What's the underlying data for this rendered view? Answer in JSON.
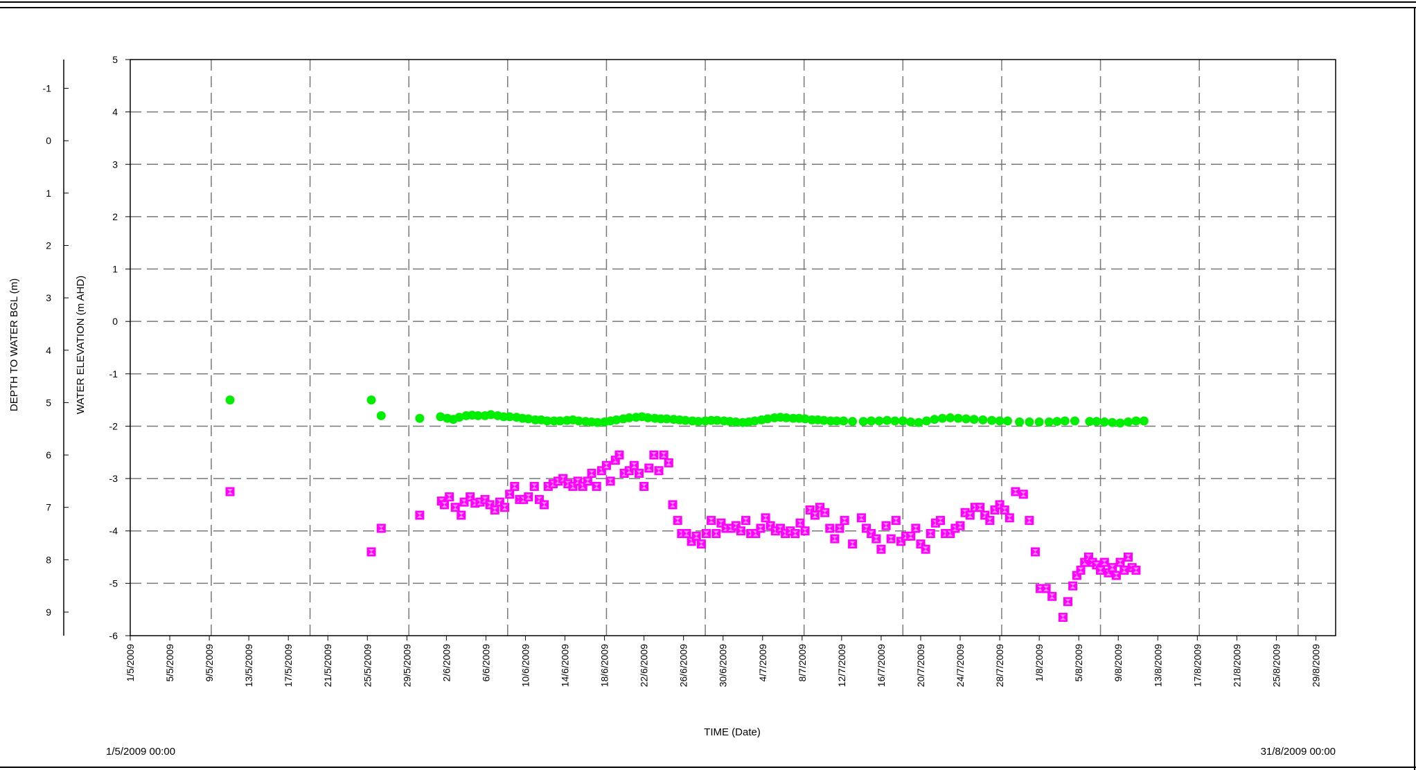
{
  "chart_data": {
    "type": "scatter",
    "xlabel": "TIME (Date)",
    "ylabel": "WATER ELEVATION (m AHD)",
    "y2label": "DEPTH TO WATER BGL (m)",
    "x_start_label": "1/5/2009 00:00",
    "x_end_label": "31/8/2009 00:00",
    "xlim": [
      "2009-05-01",
      "2009-08-31"
    ],
    "ylim": [
      -6,
      5
    ],
    "y2lim": [
      9.45,
      -1.55
    ],
    "y_ticks": [
      5,
      4,
      3,
      2,
      1,
      0,
      -1,
      -2,
      -3,
      -4,
      -5,
      -6
    ],
    "y2_ticks": [
      -1,
      0,
      1,
      2,
      3,
      4,
      5,
      6,
      7,
      8,
      9
    ],
    "x_ticks": [
      "1/5/2009",
      "5/5/2009",
      "9/5/2009",
      "13/5/2009",
      "17/5/2009",
      "21/5/2009",
      "25/5/2009",
      "29/5/2009",
      "2/6/2009",
      "6/6/2009",
      "10/6/2009",
      "14/6/2009",
      "18/6/2009",
      "22/6/2009",
      "26/6/2009",
      "30/6/2009",
      "4/7/2009",
      "8/7/2009",
      "12/7/2009",
      "16/7/2009",
      "20/7/2009",
      "24/7/2009",
      "28/7/2009",
      "1/8/2009",
      "5/8/2009",
      "9/8/2009",
      "13/8/2009",
      "17/8/2009",
      "21/8/2009",
      "25/8/2009",
      "29/8/2009"
    ],
    "grid": true,
    "series": [
      {
        "axis": "y",
        "unit": "m AHD",
        "color": "#00ee00",
        "marker": "circle",
        "x_days": [
          10.1,
          24.4,
          25.4,
          29.3,
          31.4,
          32.1,
          32.7,
          33.3,
          34.0,
          34.6,
          35.2,
          35.9,
          36.5,
          37.2,
          37.8,
          38.4,
          39.1,
          39.7,
          40.3,
          41.0,
          41.6,
          42.2,
          42.9,
          43.5,
          44.2,
          44.8,
          45.4,
          46.1,
          46.7,
          47.3,
          48.0,
          48.6,
          49.2,
          49.9,
          50.5,
          51.2,
          51.8,
          52.4,
          53.1,
          53.7,
          54.3,
          55.0,
          55.6,
          56.2,
          56.9,
          57.5,
          58.2,
          58.8,
          59.4,
          60.1,
          60.7,
          61.3,
          62.0,
          62.6,
          63.2,
          63.9,
          64.5,
          65.2,
          65.8,
          66.4,
          67.1,
          67.7,
          68.3,
          69.0,
          69.6,
          70.2,
          70.9,
          71.5,
          72.2,
          73.1,
          74.2,
          75.0,
          75.8,
          76.6,
          77.4,
          78.2,
          79.0,
          79.8,
          80.6,
          81.4,
          82.2,
          83.0,
          83.8,
          84.6,
          85.4,
          86.3,
          87.2,
          88.0,
          88.8,
          90.0,
          91.0,
          92.0,
          93.0,
          93.8,
          94.6,
          95.6,
          97.1,
          97.8,
          98.6,
          99.4,
          100.2,
          101.0,
          101.8,
          102.6
        ],
        "values": [
          -1.5,
          -1.5,
          -1.8,
          -1.85,
          -1.82,
          -1.85,
          -1.87,
          -1.83,
          -1.8,
          -1.79,
          -1.8,
          -1.8,
          -1.78,
          -1.8,
          -1.82,
          -1.82,
          -1.83,
          -1.85,
          -1.86,
          -1.88,
          -1.88,
          -1.9,
          -1.9,
          -1.9,
          -1.89,
          -1.88,
          -1.9,
          -1.91,
          -1.92,
          -1.93,
          -1.92,
          -1.9,
          -1.88,
          -1.86,
          -1.84,
          -1.83,
          -1.82,
          -1.84,
          -1.85,
          -1.86,
          -1.86,
          -1.87,
          -1.88,
          -1.89,
          -1.9,
          -1.91,
          -1.9,
          -1.89,
          -1.89,
          -1.9,
          -1.91,
          -1.92,
          -1.93,
          -1.92,
          -1.9,
          -1.88,
          -1.86,
          -1.84,
          -1.83,
          -1.84,
          -1.85,
          -1.85,
          -1.86,
          -1.88,
          -1.88,
          -1.89,
          -1.9,
          -1.9,
          -1.9,
          -1.91,
          -1.91,
          -1.9,
          -1.9,
          -1.89,
          -1.9,
          -1.9,
          -1.92,
          -1.93,
          -1.9,
          -1.87,
          -1.85,
          -1.84,
          -1.85,
          -1.86,
          -1.87,
          -1.88,
          -1.89,
          -1.9,
          -1.9,
          -1.92,
          -1.92,
          -1.92,
          -1.92,
          -1.91,
          -1.9,
          -1.9,
          -1.91,
          -1.91,
          -1.92,
          -1.93,
          -1.94,
          -1.92,
          -1.9,
          -1.9
        ]
      },
      {
        "axis": "y2",
        "unit": "m BGL",
        "color": "#ff00ff",
        "marker": "hourglass-square",
        "x_days": [
          10.1,
          24.4,
          25.4,
          29.3,
          31.5,
          31.8,
          32.3,
          32.9,
          33.5,
          33.8,
          34.4,
          34.9,
          35.4,
          35.9,
          36.4,
          36.9,
          37.4,
          37.9,
          38.4,
          38.9,
          39.4,
          39.8,
          40.3,
          40.9,
          41.4,
          41.9,
          42.3,
          42.8,
          43.3,
          43.8,
          44.3,
          44.8,
          45.3,
          45.8,
          46.3,
          46.7,
          47.2,
          47.7,
          48.2,
          48.6,
          49.1,
          49.5,
          50.0,
          50.5,
          51.0,
          51.5,
          52.0,
          52.5,
          53.0,
          53.5,
          54.0,
          54.5,
          54.9,
          55.4,
          55.8,
          56.3,
          56.8,
          57.3,
          57.8,
          58.3,
          58.8,
          59.3,
          59.8,
          60.3,
          60.8,
          61.3,
          61.8,
          62.3,
          62.8,
          63.3,
          63.8,
          64.3,
          64.8,
          65.3,
          65.8,
          66.3,
          66.8,
          67.3,
          67.8,
          68.3,
          68.8,
          69.3,
          69.8,
          70.3,
          70.8,
          71.3,
          71.8,
          72.3,
          73.1,
          74.0,
          74.5,
          75.0,
          75.5,
          76.0,
          76.5,
          77.0,
          77.5,
          78.0,
          78.5,
          79.0,
          79.5,
          80.0,
          80.5,
          81.0,
          81.5,
          82.0,
          82.5,
          83.0,
          83.5,
          84.0,
          84.5,
          85.0,
          85.5,
          86.0,
          86.5,
          87.0,
          87.5,
          88.0,
          88.5,
          89.0,
          89.6,
          90.4,
          91.0,
          91.6,
          92.1,
          92.7,
          93.3,
          94.4,
          94.9,
          95.4,
          95.8,
          96.2,
          96.6,
          97.0,
          97.4,
          97.8,
          98.2,
          98.6,
          99.0,
          99.4,
          99.8,
          100.2,
          100.6,
          101.0,
          101.4,
          101.8
        ],
        "values": [
          6.7,
          7.85,
          7.4,
          7.15,
          6.88,
          6.95,
          6.8,
          7.0,
          7.15,
          6.9,
          6.8,
          6.92,
          6.9,
          6.85,
          6.95,
          7.05,
          6.9,
          7.0,
          6.75,
          6.6,
          6.85,
          6.85,
          6.8,
          6.6,
          6.85,
          6.95,
          6.6,
          6.55,
          6.5,
          6.45,
          6.55,
          6.6,
          6.5,
          6.6,
          6.5,
          6.35,
          6.6,
          6.3,
          6.2,
          6.5,
          6.1,
          6.0,
          6.35,
          6.3,
          6.2,
          6.35,
          6.6,
          6.25,
          6.0,
          6.3,
          6.0,
          6.15,
          6.95,
          7.25,
          7.5,
          7.5,
          7.65,
          7.55,
          7.7,
          7.5,
          7.25,
          7.5,
          7.3,
          7.4,
          7.4,
          7.35,
          7.45,
          7.25,
          7.5,
          7.5,
          7.4,
          7.2,
          7.35,
          7.45,
          7.4,
          7.5,
          7.45,
          7.5,
          7.3,
          7.45,
          7.05,
          7.15,
          7.0,
          7.1,
          7.4,
          7.6,
          7.4,
          7.25,
          7.7,
          7.2,
          7.4,
          7.5,
          7.6,
          7.8,
          7.35,
          7.6,
          7.25,
          7.65,
          7.55,
          7.55,
          7.4,
          7.7,
          7.8,
          7.5,
          7.3,
          7.25,
          7.5,
          7.5,
          7.4,
          7.35,
          7.1,
          7.15,
          7.0,
          7.0,
          7.15,
          7.25,
          7.05,
          6.95,
          7.05,
          7.2,
          6.7,
          6.75,
          7.25,
          7.85,
          8.55,
          8.55,
          8.7,
          9.1,
          8.8,
          8.5,
          8.3,
          8.2,
          8.05,
          7.95,
          8.05,
          8.1,
          8.2,
          8.05,
          8.25,
          8.15,
          8.3,
          8.05,
          8.2,
          7.95,
          8.15,
          8.2
        ]
      }
    ]
  }
}
